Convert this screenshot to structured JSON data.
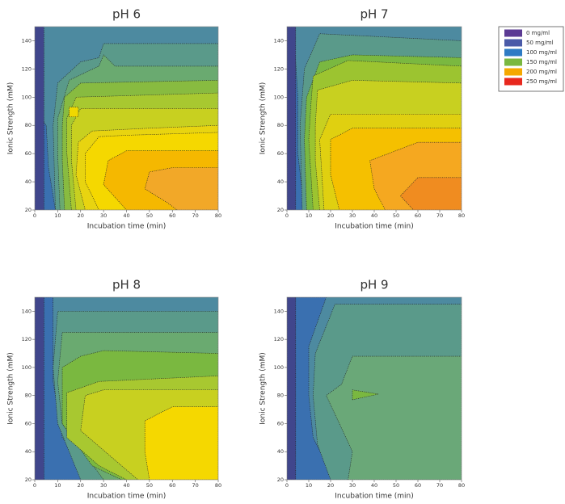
{
  "chart_data": [
    {
      "type": "contour",
      "title": "pH 6",
      "xlabel": "Incubation time (min)",
      "ylabel": "Ionic Strength (mM)",
      "xlim": [
        0,
        80
      ],
      "ylim": [
        20,
        150
      ],
      "xticks": [
        0,
        10,
        20,
        30,
        40,
        50,
        60,
        70,
        80
      ],
      "yticks": [
        20,
        40,
        60,
        80,
        100,
        120,
        140
      ],
      "background": "#4d8aa0",
      "regions": [
        {
          "color": "#3a70b0",
          "x": [
            0,
            9,
            6,
            5,
            0
          ],
          "y": [
            20,
            20,
            50,
            80,
            90
          ]
        },
        {
          "color": "#5a9a8a",
          "x": [
            9,
            80,
            80,
            30,
            28,
            20,
            10,
            8
          ],
          "y": [
            20,
            20,
            138,
            138,
            128,
            125,
            110,
            80
          ]
        },
        {
          "color": "#6aaa70",
          "x": [
            11,
            80,
            80,
            35,
            30,
            28,
            15,
            10,
            10
          ],
          "y": [
            20,
            20,
            122,
            122,
            130,
            122,
            112,
            85,
            60
          ]
        },
        {
          "color": "#88bb40",
          "x": [
            13,
            80,
            80,
            20,
            13,
            12,
            12
          ],
          "y": [
            20,
            20,
            112,
            110,
            100,
            80,
            55
          ]
        },
        {
          "color": "#a8c830",
          "x": [
            16,
            80,
            80,
            18,
            14,
            14
          ],
          "y": [
            20,
            20,
            103,
            100,
            85,
            60
          ]
        },
        {
          "color": "#c8d020",
          "x": [
            18,
            80,
            80,
            20,
            16,
            16
          ],
          "y": [
            20,
            20,
            92,
            92,
            80,
            55
          ]
        },
        {
          "color": "#e8d410",
          "x": [
            22,
            80,
            80,
            50,
            25,
            19,
            18
          ],
          "y": [
            20,
            20,
            80,
            78,
            76,
            68,
            45
          ]
        },
        {
          "color": "#f5d800",
          "x": [
            28,
            80,
            80,
            40,
            28,
            22,
            22
          ],
          "y": [
            20,
            20,
            75,
            73,
            72,
            60,
            40
          ]
        },
        {
          "color": "#f5b800",
          "x": [
            40,
            80,
            80,
            40,
            32,
            30
          ],
          "y": [
            20,
            20,
            62,
            62,
            55,
            38
          ]
        },
        {
          "color": "#f2a828",
          "x": [
            62,
            80,
            80,
            60,
            50,
            48,
            58
          ],
          "y": [
            20,
            20,
            50,
            50,
            47,
            35,
            25
          ]
        },
        {
          "color": "#f0d800",
          "x": [
            15,
            19,
            19,
            15
          ],
          "y": [
            86,
            86,
            93,
            93
          ]
        },
        {
          "color": "#40468c",
          "x": [
            0,
            4,
            4,
            0
          ],
          "y": [
            20,
            20,
            150,
            150
          ]
        }
      ]
    },
    {
      "type": "contour",
      "title": "pH 7",
      "xlabel": "Incubation time (min)",
      "ylabel": "Ionic Strength (mM)",
      "xlim": [
        0,
        80
      ],
      "ylim": [
        20,
        150
      ],
      "xticks": [
        0,
        10,
        20,
        30,
        40,
        50,
        60,
        70,
        80
      ],
      "yticks": [
        20,
        40,
        60,
        80,
        100,
        120,
        140
      ],
      "background": "#4d8aa0",
      "regions": [
        {
          "color": "#3a70b0",
          "x": [
            0,
            8,
            5,
            5,
            3,
            0
          ],
          "y": [
            20,
            20,
            60,
            100,
            150,
            150
          ]
        },
        {
          "color": "#5a9a8a",
          "x": [
            7,
            80,
            80,
            15,
            8,
            6
          ],
          "y": [
            20,
            20,
            140,
            145,
            120,
            80
          ]
        },
        {
          "color": "#7ab840",
          "x": [
            9,
            80,
            80,
            30,
            15,
            9,
            8
          ],
          "y": [
            20,
            20,
            128,
            130,
            125,
            100,
            70
          ]
        },
        {
          "color": "#9cc430",
          "x": [
            12,
            80,
            80,
            28,
            12,
            11,
            10
          ],
          "y": [
            20,
            20,
            122,
            126,
            115,
            95,
            70
          ]
        },
        {
          "color": "#c8d020",
          "x": [
            15,
            80,
            80,
            30,
            14,
            13,
            13
          ],
          "y": [
            20,
            20,
            110,
            112,
            105,
            80,
            55
          ]
        },
        {
          "color": "#e0d010",
          "x": [
            17,
            80,
            80,
            20,
            15
          ],
          "y": [
            20,
            20,
            88,
            88,
            70
          ]
        },
        {
          "color": "#f5c000",
          "x": [
            24,
            80,
            80,
            30,
            20,
            20
          ],
          "y": [
            20,
            20,
            78,
            78,
            70,
            45
          ]
        },
        {
          "color": "#f5a820",
          "x": [
            45,
            80,
            80,
            60,
            38,
            40
          ],
          "y": [
            20,
            20,
            68,
            68,
            55,
            35
          ]
        },
        {
          "color": "#f08c20",
          "x": [
            58,
            80,
            80,
            60,
            52
          ],
          "y": [
            20,
            20,
            43,
            43,
            30
          ]
        },
        {
          "color": "#40468c",
          "x": [
            0,
            4,
            4,
            0
          ],
          "y": [
            20,
            20,
            150,
            150
          ]
        }
      ]
    },
    {
      "type": "contour",
      "title": "pH 8",
      "xlabel": "Incubation time (min)",
      "ylabel": "Ionic Strength (mM)",
      "xlim": [
        0,
        80
      ],
      "ylim": [
        20,
        150
      ],
      "xticks": [
        0,
        10,
        20,
        30,
        40,
        50,
        60,
        70,
        80
      ],
      "yticks": [
        20,
        40,
        60,
        80,
        100,
        120,
        140
      ],
      "background": "#4d8aa0",
      "regions": [
        {
          "color": "#3a70b0",
          "x": [
            0,
            40,
            25,
            12,
            8,
            8,
            0
          ],
          "y": [
            20,
            20,
            25,
            50,
            90,
            150,
            150
          ]
        },
        {
          "color": "#5a9a8a",
          "x": [
            20,
            80,
            80,
            10,
            8,
            10
          ],
          "y": [
            20,
            20,
            140,
            140,
            100,
            60
          ]
        },
        {
          "color": "#6aaa70",
          "x": [
            30,
            80,
            80,
            12,
            10,
            12
          ],
          "y": [
            20,
            20,
            125,
            125,
            90,
            60
          ]
        },
        {
          "color": "#7ab840",
          "x": [
            38,
            80,
            80,
            30,
            20,
            12,
            12,
            25
          ],
          "y": [
            20,
            20,
            110,
            112,
            108,
            100,
            60,
            30
          ]
        },
        {
          "color": "#a8c830",
          "x": [
            40,
            80,
            80,
            28,
            14,
            14,
            28
          ],
          "y": [
            20,
            20,
            94,
            90,
            82,
            50,
            30
          ]
        },
        {
          "color": "#c8d020",
          "x": [
            45,
            80,
            80,
            30,
            22,
            20
          ],
          "y": [
            20,
            20,
            84,
            84,
            80,
            55
          ]
        },
        {
          "color": "#f5d800",
          "x": [
            50,
            80,
            80,
            60,
            48,
            48
          ],
          "y": [
            20,
            20,
            72,
            72,
            62,
            40
          ]
        },
        {
          "color": "#40468c",
          "x": [
            0,
            4,
            4,
            0
          ],
          "y": [
            20,
            20,
            150,
            150
          ]
        }
      ]
    },
    {
      "type": "contour",
      "title": "pH 9",
      "xlabel": "Incubation time (min)",
      "ylabel": "Ionic Strength (mM)",
      "xlim": [
        0,
        80
      ],
      "ylim": [
        20,
        150
      ],
      "xticks": [
        0,
        10,
        20,
        30,
        40,
        50,
        60,
        70,
        80
      ],
      "yticks": [
        20,
        40,
        60,
        80,
        100,
        120,
        140
      ],
      "background": "#4d8aa0",
      "regions": [
        {
          "color": "#3a70b0",
          "x": [
            0,
            22,
            12,
            10,
            10,
            18,
            0
          ],
          "y": [
            20,
            20,
            50,
            80,
            115,
            150,
            150
          ]
        },
        {
          "color": "#5a9a8a",
          "x": [
            20,
            80,
            80,
            22,
            13,
            12,
            14
          ],
          "y": [
            20,
            20,
            145,
            145,
            110,
            80,
            45
          ]
        },
        {
          "color": "#6aa878",
          "x": [
            28,
            80,
            80,
            30,
            25,
            18,
            30
          ],
          "y": [
            20,
            20,
            108,
            108,
            88,
            80,
            40
          ]
        },
        {
          "color": "#7ab840",
          "x": [
            30,
            42,
            30
          ],
          "y": [
            77,
            81,
            84
          ]
        },
        {
          "color": "#40468c",
          "x": [
            0,
            4,
            4,
            0
          ],
          "y": [
            20,
            20,
            150,
            150
          ]
        }
      ]
    }
  ],
  "legend": [
    {
      "label": "0 mg/ml",
      "color": "#5b3a93"
    },
    {
      "label": "50 mg/ml",
      "color": "#4a5aa8"
    },
    {
      "label": "100 mg/ml",
      "color": "#2e7bc4"
    },
    {
      "label": "150 mg/ml",
      "color": "#7ab840"
    },
    {
      "label": "200 mg/ml",
      "color": "#f5a800"
    },
    {
      "label": "250 mg/ml",
      "color": "#e8281e"
    }
  ]
}
